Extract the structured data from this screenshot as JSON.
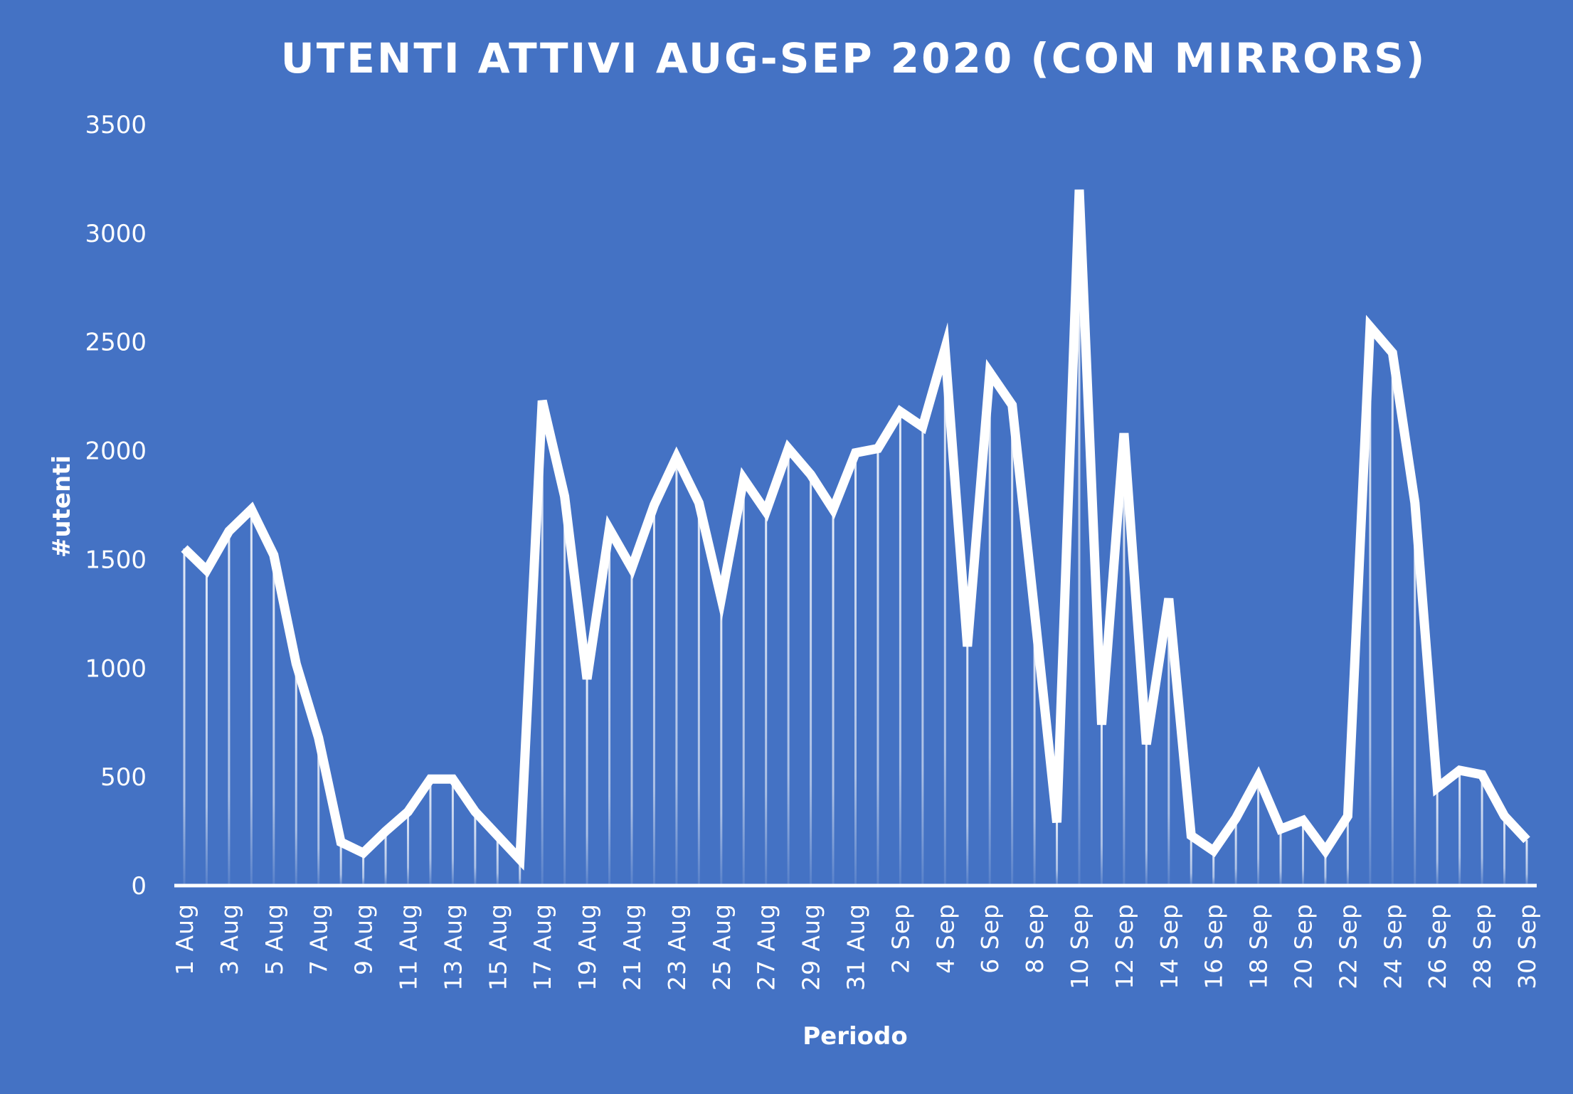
{
  "colors": {
    "background": "#4472C4",
    "line": "#FFFFFF",
    "text": "#FFFFFF"
  },
  "chart_data": {
    "type": "line",
    "title": "UTENTI ATTIVI AUG-SEP 2020 (CON MIRRORS)",
    "xlabel": "Periodo",
    "ylabel": "#utenti",
    "ylim": [
      0,
      3500
    ],
    "yticks": [
      0,
      500,
      1000,
      1500,
      2000,
      2500,
      3000,
      3500
    ],
    "grid": false,
    "legend": "none",
    "drop_lines": true,
    "x": [
      "1 Aug",
      "2 Aug",
      "3 Aug",
      "4 Aug",
      "5 Aug",
      "6 Aug",
      "7 Aug",
      "8 Aug",
      "9 Aug",
      "10 Aug",
      "11 Aug",
      "12 Aug",
      "13 Aug",
      "14 Aug",
      "15 Aug",
      "16 Aug",
      "17 Aug",
      "18 Aug",
      "19 Aug",
      "20 Aug",
      "21 Aug",
      "22 Aug",
      "23 Aug",
      "24 Aug",
      "25 Aug",
      "26 Aug",
      "27 Aug",
      "28 Aug",
      "29 Aug",
      "30 Aug",
      "31 Aug",
      "1 Sep",
      "2 Sep",
      "3 Sep",
      "4 Sep",
      "5 Sep",
      "6 Sep",
      "7 Sep",
      "8 Sep",
      "9 Sep",
      "10 Sep",
      "11 Sep",
      "12 Sep",
      "13 Sep",
      "14 Sep",
      "15 Sep",
      "16 Sep",
      "17 Sep",
      "18 Sep",
      "19 Sep",
      "20 Sep",
      "21 Sep",
      "22 Sep",
      "23 Sep",
      "24 Sep",
      "25 Sep",
      "26 Sep",
      "27 Sep",
      "28 Sep",
      "29 Sep",
      "30 Sep"
    ],
    "xtick_labels": [
      "1 Aug",
      "3 Aug",
      "5 Aug",
      "7 Aug",
      "9 Aug",
      "11 Aug",
      "13 Aug",
      "15 Aug",
      "17 Aug",
      "19 Aug",
      "21 Aug",
      "23 Aug",
      "25 Aug",
      "27 Aug",
      "29 Aug",
      "31 Aug",
      "2 Sep",
      "4 Sep",
      "6 Sep",
      "8 Sep",
      "10 Sep",
      "12 Sep",
      "14 Sep",
      "16 Sep",
      "18 Sep",
      "20 Sep",
      "22 Sep",
      "24 Sep",
      "26 Sep",
      "28 Sep",
      "30 Sep"
    ],
    "series": [
      {
        "values": [
          1550,
          1450,
          1630,
          1730,
          1520,
          1020,
          680,
          200,
          150,
          250,
          340,
          490,
          490,
          340,
          230,
          120,
          2230,
          1790,
          950,
          1640,
          1460,
          1750,
          1970,
          1760,
          1320,
          1870,
          1720,
          2010,
          1890,
          1730,
          1990,
          2010,
          2180,
          2110,
          2470,
          1100,
          2360,
          2210,
          1260,
          290,
          3200,
          740,
          2080,
          650,
          1320,
          230,
          160,
          310,
          500,
          260,
          300,
          160,
          320,
          2570,
          2450,
          1760,
          450,
          530,
          510,
          320,
          210
        ]
      }
    ]
  }
}
